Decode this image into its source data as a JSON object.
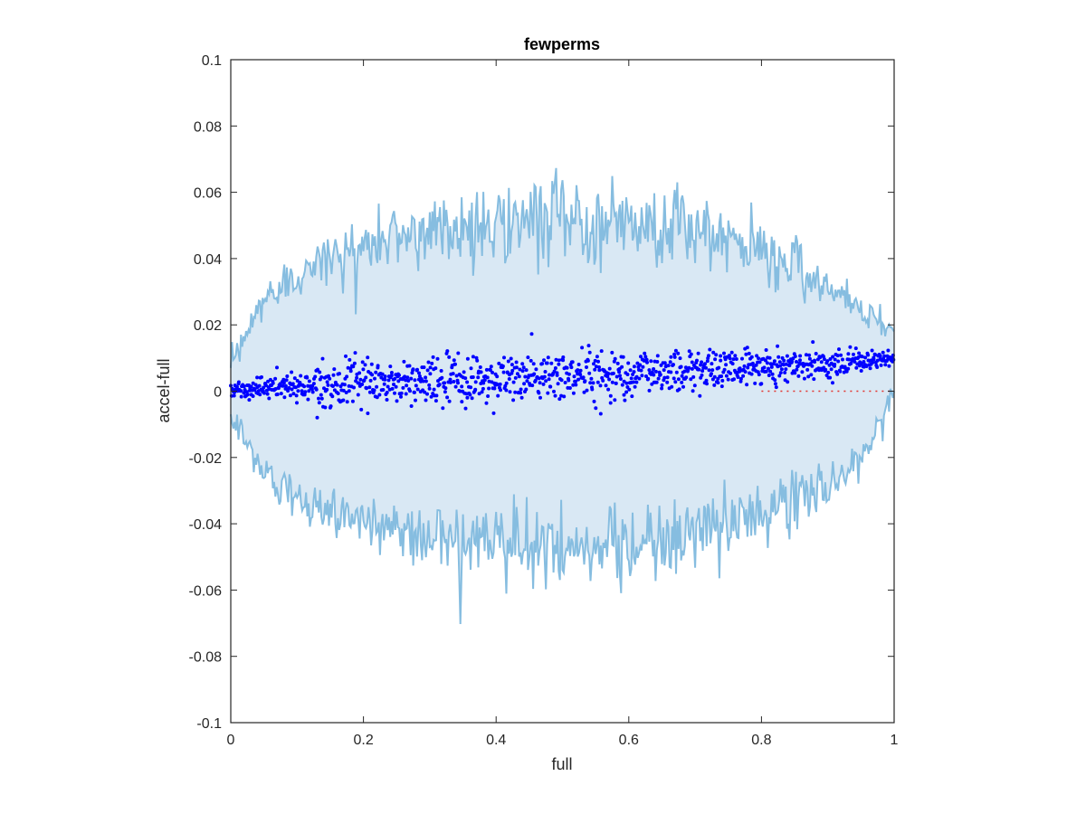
{
  "chart_data": {
    "type": "scatter",
    "title": "fewperms",
    "xlabel": "full",
    "ylabel": "accel-full",
    "xlim": [
      0,
      1
    ],
    "ylim": [
      -0.1,
      0.1
    ],
    "xticks": [
      {
        "value": 0,
        "label": "0"
      },
      {
        "value": 0.2,
        "label": "0.2"
      },
      {
        "value": 0.4,
        "label": "0.4"
      },
      {
        "value": 0.6,
        "label": "0.6"
      },
      {
        "value": 0.8,
        "label": "0.8"
      },
      {
        "value": 1,
        "label": "1"
      }
    ],
    "yticks": [
      {
        "value": 0.1,
        "label": "0.1"
      },
      {
        "value": 0.08,
        "label": "0.08"
      },
      {
        "value": 0.06,
        "label": "0.06"
      },
      {
        "value": 0.04,
        "label": "0.04"
      },
      {
        "value": 0.02,
        "label": "0.02"
      },
      {
        "value": 0,
        "label": "0"
      },
      {
        "value": -0.02,
        "label": "-0.02"
      },
      {
        "value": -0.04,
        "label": "-0.04"
      },
      {
        "value": -0.06,
        "label": "-0.06"
      },
      {
        "value": -0.08,
        "label": "-0.08"
      },
      {
        "value": -0.1,
        "label": "-0.1"
      }
    ],
    "grid": false,
    "colors": {
      "band_fill": "#d9e8f4",
      "band_edge": "#86bde0",
      "points": "#0000ff",
      "reference_line": "#e3342f"
    },
    "band": {
      "x": [
        0,
        0.05,
        0.1,
        0.15,
        0.2,
        0.25,
        0.3,
        0.35,
        0.4,
        0.45,
        0.5,
        0.55,
        0.6,
        0.65,
        0.7,
        0.75,
        0.8,
        0.85,
        0.9,
        0.95,
        1
      ],
      "upper": [
        0.007,
        0.028,
        0.036,
        0.04,
        0.043,
        0.047,
        0.049,
        0.05,
        0.05,
        0.051,
        0.052,
        0.052,
        0.051,
        0.05,
        0.048,
        0.045,
        0.042,
        0.038,
        0.032,
        0.025,
        0.018
      ],
      "lower": [
        -0.007,
        -0.025,
        -0.033,
        -0.036,
        -0.039,
        -0.042,
        -0.044,
        -0.045,
        -0.046,
        -0.047,
        -0.048,
        -0.047,
        -0.046,
        -0.045,
        -0.043,
        -0.04,
        -0.037,
        -0.033,
        -0.029,
        -0.022,
        0.0
      ]
    },
    "series": [
      {
        "type": "scatter",
        "x": [
          0,
          0.05,
          0.1,
          0.15,
          0.2,
          0.25,
          0.3,
          0.35,
          0.4,
          0.45,
          0.5,
          0.55,
          0.6,
          0.65,
          0.7,
          0.75,
          0.8,
          0.85,
          0.9,
          0.95,
          1
        ],
        "center": [
          0.0005,
          0.001,
          0.0015,
          0.002,
          0.0025,
          0.0025,
          0.003,
          0.003,
          0.0035,
          0.004,
          0.0045,
          0.005,
          0.0055,
          0.006,
          0.0065,
          0.007,
          0.0075,
          0.008,
          0.0085,
          0.009,
          0.0095
        ],
        "spread": [
          0.002,
          0.003,
          0.004,
          0.005,
          0.0055,
          0.006,
          0.0065,
          0.007,
          0.007,
          0.007,
          0.007,
          0.007,
          0.0065,
          0.006,
          0.0055,
          0.005,
          0.0045,
          0.004,
          0.0035,
          0.003,
          0.002
        ]
      },
      {
        "type": "line",
        "style": "dotted",
        "x": [
          0.8,
          1
        ],
        "y": [
          0,
          0
        ]
      }
    ]
  }
}
